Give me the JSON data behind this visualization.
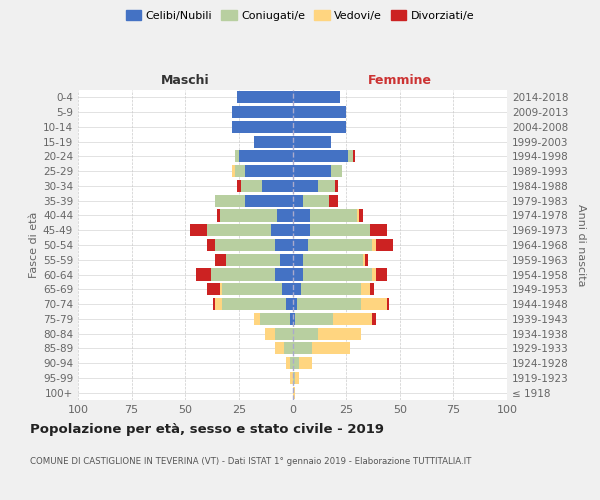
{
  "age_groups": [
    "100+",
    "95-99",
    "90-94",
    "85-89",
    "80-84",
    "75-79",
    "70-74",
    "65-69",
    "60-64",
    "55-59",
    "50-54",
    "45-49",
    "40-44",
    "35-39",
    "30-34",
    "25-29",
    "20-24",
    "15-19",
    "10-14",
    "5-9",
    "0-4"
  ],
  "birth_years": [
    "≤ 1918",
    "1919-1923",
    "1924-1928",
    "1929-1933",
    "1934-1938",
    "1939-1943",
    "1944-1948",
    "1949-1953",
    "1954-1958",
    "1959-1963",
    "1964-1968",
    "1969-1973",
    "1974-1978",
    "1979-1983",
    "1984-1988",
    "1989-1993",
    "1994-1998",
    "1999-2003",
    "2004-2008",
    "2009-2013",
    "2014-2018"
  ],
  "colors": {
    "celibe": "#4472c4",
    "coniugato": "#b8cfa0",
    "vedovo": "#ffd580",
    "divorziato": "#cc2222"
  },
  "maschi": {
    "celibe": [
      0,
      0,
      0,
      0,
      0,
      1,
      3,
      5,
      8,
      6,
      8,
      10,
      7,
      22,
      14,
      22,
      25,
      18,
      28,
      28,
      26
    ],
    "coniugato": [
      0,
      0,
      1,
      4,
      8,
      14,
      30,
      28,
      30,
      25,
      28,
      30,
      27,
      14,
      10,
      5,
      2,
      0,
      0,
      0,
      0
    ],
    "vedovo": [
      0,
      1,
      2,
      4,
      5,
      3,
      3,
      1,
      0,
      0,
      0,
      0,
      0,
      0,
      0,
      1,
      0,
      0,
      0,
      0,
      0
    ],
    "divorziato": [
      0,
      0,
      0,
      0,
      0,
      0,
      1,
      6,
      7,
      5,
      4,
      8,
      1,
      0,
      2,
      0,
      0,
      0,
      0,
      0,
      0
    ]
  },
  "femmine": {
    "celibe": [
      0,
      0,
      0,
      0,
      0,
      1,
      2,
      4,
      5,
      5,
      7,
      8,
      8,
      5,
      12,
      18,
      26,
      18,
      25,
      25,
      22
    ],
    "coniugato": [
      0,
      1,
      3,
      9,
      12,
      18,
      30,
      28,
      32,
      28,
      30,
      28,
      22,
      12,
      8,
      5,
      2,
      0,
      0,
      0,
      0
    ],
    "vedovo": [
      1,
      2,
      6,
      18,
      20,
      18,
      12,
      4,
      2,
      1,
      2,
      0,
      1,
      0,
      0,
      0,
      0,
      0,
      0,
      0,
      0
    ],
    "divorziato": [
      0,
      0,
      0,
      0,
      0,
      2,
      1,
      2,
      5,
      1,
      8,
      8,
      2,
      4,
      1,
      0,
      1,
      0,
      0,
      0,
      0
    ]
  },
  "xlim": 100,
  "xtick_vals": [
    -100,
    -75,
    -50,
    -25,
    0,
    25,
    50,
    75,
    100
  ],
  "title": "Popolazione per età, sesso e stato civile - 2019",
  "subtitle": "COMUNE DI CASTIGLIONE IN TEVERINA (VT) - Dati ISTAT 1° gennaio 2019 - Elaborazione TUTTITALIA.IT",
  "ylabel_left": "Fasce di età",
  "ylabel_right": "Anni di nascita",
  "header_left": "Maschi",
  "header_right": "Femmine",
  "bg_color": "#f0f0f0",
  "plot_bg": "#ffffff",
  "legend_labels": [
    "Celibi/Nubili",
    "Coniugati/e",
    "Vedovi/e",
    "Divorziati/e"
  ],
  "grid_color": "#cccccc",
  "center_line_color": "#aaaacc",
  "tick_label_color": "#666666"
}
